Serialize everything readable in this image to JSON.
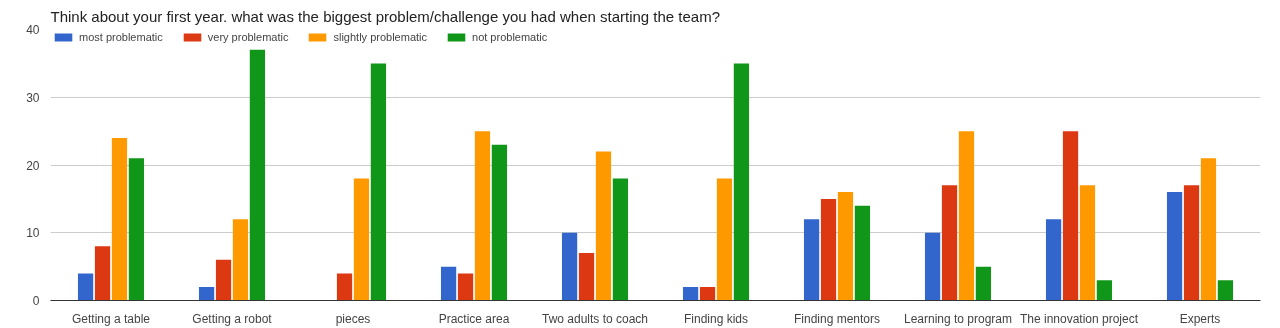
{
  "chart_data": {
    "type": "bar",
    "title": "Think about your first year. what was the biggest problem/challenge you had when starting the team?",
    "categories": [
      "Getting a table",
      "Getting a robot",
      "pieces",
      "Practice area",
      "Two adults to coach",
      "Finding kids",
      "Finding mentors",
      "Learning to program",
      "The innovation project",
      "Experts"
    ],
    "series": [
      {
        "name": "most problematic",
        "color": "#3366cc",
        "values": [
          4,
          2,
          0,
          5,
          10,
          2,
          12,
          10,
          12,
          16
        ]
      },
      {
        "name": "very problematic",
        "color": "#dc3912",
        "values": [
          8,
          6,
          4,
          4,
          7,
          2,
          15,
          17,
          25,
          17
        ]
      },
      {
        "name": "slightly problematic",
        "color": "#ff9900",
        "values": [
          24,
          12,
          18,
          25,
          22,
          18,
          16,
          25,
          17,
          21
        ]
      },
      {
        "name": "not problematic",
        "color": "#109618",
        "values": [
          21,
          37,
          35,
          23,
          18,
          35,
          14,
          5,
          3,
          3
        ]
      }
    ],
    "ylim": [
      0,
      40
    ],
    "yticks": [
      0,
      10,
      20,
      30,
      40
    ],
    "grid": "y",
    "legend": "top left"
  }
}
